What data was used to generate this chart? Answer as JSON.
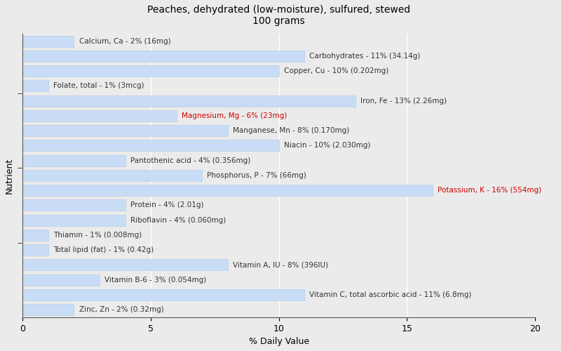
{
  "title": "Peaches, dehydrated (low-moisture), sulfured, stewed\n100 grams",
  "xlabel": "% Daily Value",
  "ylabel": "Nutrient",
  "xlim": [
    0,
    20
  ],
  "background_color": "#ebebeb",
  "bar_color": "#c8ddf5",
  "bar_edge_color": "#b0c8e8",
  "nutrients": [
    {
      "label": "Calcium, Ca - 2% (16mg)",
      "value": 2,
      "text_color": "#333333"
    },
    {
      "label": "Carbohydrates - 11% (34.14g)",
      "value": 11,
      "text_color": "#333333"
    },
    {
      "label": "Copper, Cu - 10% (0.202mg)",
      "value": 10,
      "text_color": "#333333"
    },
    {
      "label": "Folate, total - 1% (3mcg)",
      "value": 1,
      "text_color": "#333333"
    },
    {
      "label": "Iron, Fe - 13% (2.26mg)",
      "value": 13,
      "text_color": "#333333"
    },
    {
      "label": "Magnesium, Mg - 6% (23mg)",
      "value": 6,
      "text_color": "#cc0000"
    },
    {
      "label": "Manganese, Mn - 8% (0.170mg)",
      "value": 8,
      "text_color": "#333333"
    },
    {
      "label": "Niacin - 10% (2.030mg)",
      "value": 10,
      "text_color": "#333333"
    },
    {
      "label": "Pantothenic acid - 4% (0.356mg)",
      "value": 4,
      "text_color": "#333333"
    },
    {
      "label": "Phosphorus, P - 7% (66mg)",
      "value": 7,
      "text_color": "#333333"
    },
    {
      "label": "Potassium, K - 16% (554mg)",
      "value": 16,
      "text_color": "#cc0000"
    },
    {
      "label": "Protein - 4% (2.01g)",
      "value": 4,
      "text_color": "#333333"
    },
    {
      "label": "Riboflavin - 4% (0.060mg)",
      "value": 4,
      "text_color": "#333333"
    },
    {
      "label": "Thiamin - 1% (0.008mg)",
      "value": 1,
      "text_color": "#333333"
    },
    {
      "label": "Total lipid (fat) - 1% (0.42g)",
      "value": 1,
      "text_color": "#333333"
    },
    {
      "label": "Vitamin A, IU - 8% (396IU)",
      "value": 8,
      "text_color": "#333333"
    },
    {
      "label": "Vitamin B-6 - 3% (0.054mg)",
      "value": 3,
      "text_color": "#333333"
    },
    {
      "label": "Vitamin C, total ascorbic acid - 11% (6.8mg)",
      "value": 11,
      "text_color": "#333333"
    },
    {
      "label": "Zinc, Zn - 2% (0.32mg)",
      "value": 2,
      "text_color": "#333333"
    }
  ],
  "ytick_positions": [
    3.5,
    8.5,
    13.5
  ],
  "title_fontsize": 10,
  "axis_label_fontsize": 9,
  "tick_fontsize": 9,
  "bar_label_fontsize": 7.5
}
